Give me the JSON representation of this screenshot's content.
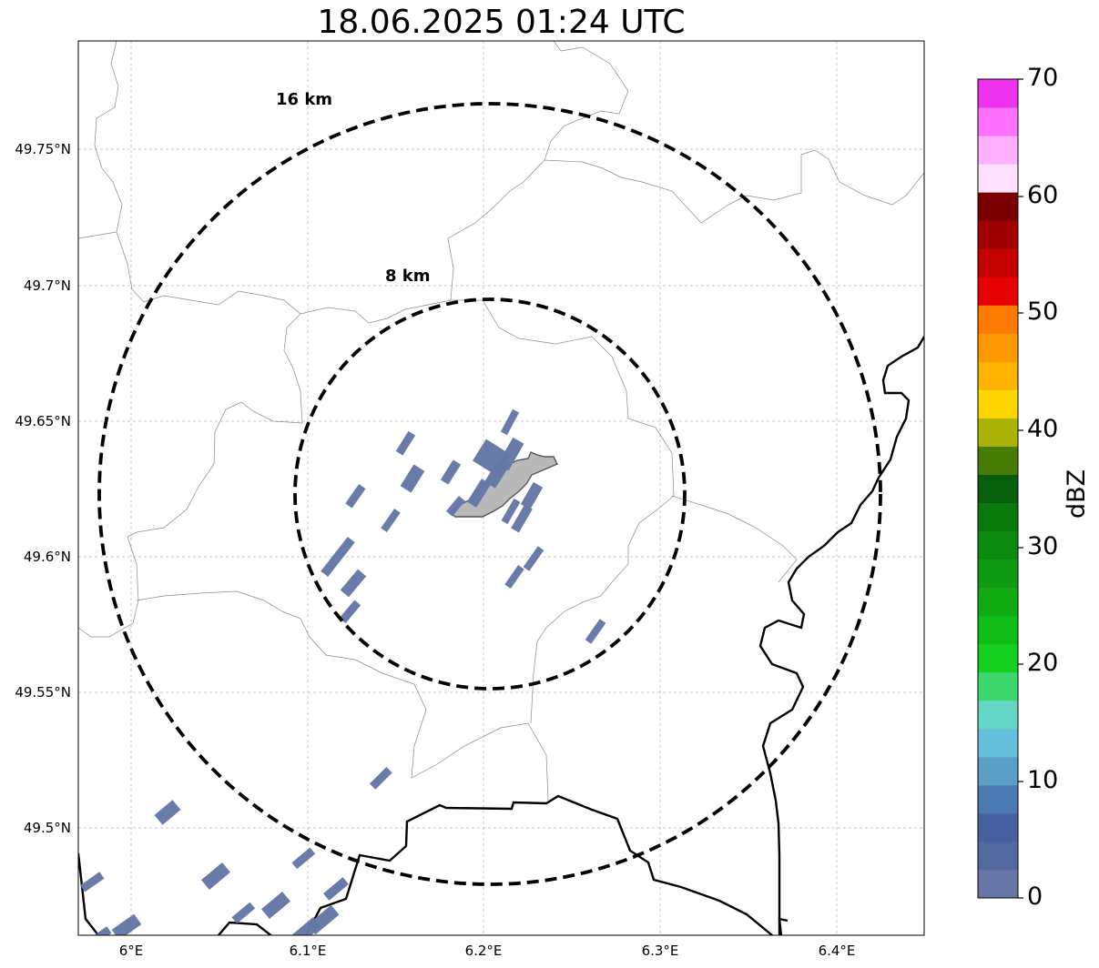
{
  "title": "18.06.2025 01:24 UTC",
  "map": {
    "range_rings": [
      {
        "label": "8 km"
      },
      {
        "label": "16 km"
      }
    ],
    "lat_ticks": [
      "49.75°N",
      "49.7°N",
      "49.65°N",
      "49.6°N",
      "49.55°N",
      "49.5°N"
    ],
    "lon_ticks": [
      "6°E",
      "6.1°E",
      "6.2°E",
      "6.3°E",
      "6.4°E"
    ],
    "reflectivity_fill_color": "#6478a6",
    "urban_area_color": "#b9b9b9"
  },
  "colorbar": {
    "label": "dBZ",
    "ticks": [
      "0",
      "10",
      "20",
      "30",
      "40",
      "50",
      "60",
      "70"
    ],
    "colors": [
      "#6675a6",
      "#536aa1",
      "#4660a0",
      "#4b7bb0",
      "#5b9fc6",
      "#66c0dc",
      "#63d6c6",
      "#3fd86f",
      "#14cf1d",
      "#11bd17",
      "#10ab15",
      "#0e9a13",
      "#0b8a10",
      "#09780d",
      "#075e0a",
      "#467c06",
      "#aab306",
      "#ffd500",
      "#ffb300",
      "#ff9900",
      "#ff7a00",
      "#e60000",
      "#c40000",
      "#a10000",
      "#7a0000",
      "#ffe0ff",
      "#ffb0ff",
      "#ff70ff",
      "#ee33ee"
    ]
  }
}
